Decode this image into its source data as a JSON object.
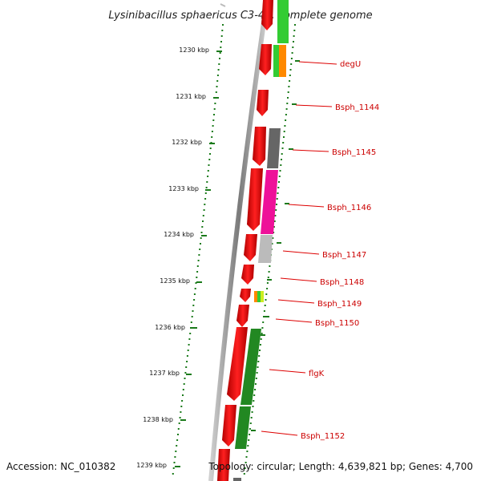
{
  "title": "Lysinibacillus sphaericus C3-41, complete genome",
  "footer": {
    "accession": "Accession: NC_010382",
    "topology": "Topology: circular; Length: 4,639,821 bp; Genes: 4,700"
  },
  "scale_labels": [
    "1230 kbp",
    "1231 kbp",
    "1232 kbp",
    "1233 kbp",
    "1234 kbp",
    "1235 kbp",
    "1236 kbp",
    "1237 kbp",
    "1238 kbp",
    "1239 kbp"
  ],
  "gene_labels": [
    "degU",
    "Bsph_1144",
    "Bsph_1145",
    "Bsph_1146",
    "Bsph_1147",
    "Bsph_1148",
    "Bsph_1149",
    "Bsph_1150",
    "flgK",
    "Bsph_1152"
  ],
  "colors": {
    "forward_strand": "#ee0000",
    "backbone": "#888888",
    "scale_ticks": "#1a7a1a",
    "label_lines": "#dd0000",
    "cog_green": "#33cc33",
    "cog_orange": "#ff8800",
    "cog_dark_grey": "#666666",
    "cog_magenta": "#ee1199",
    "cog_light_grey": "#bbbbbb",
    "cog_dark_green": "#228822"
  }
}
